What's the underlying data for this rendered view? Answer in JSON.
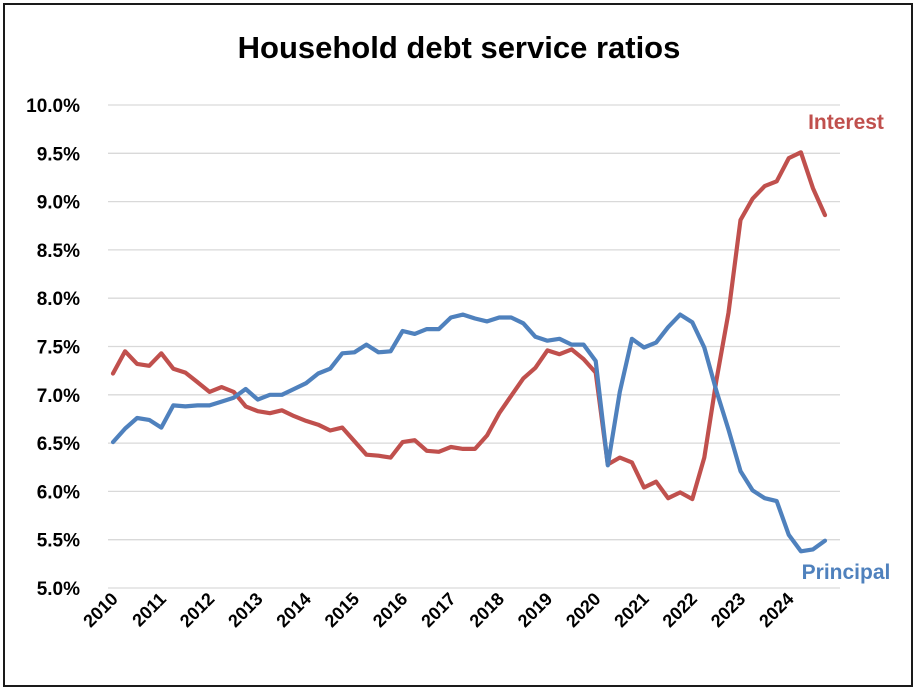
{
  "chart_data": {
    "type": "line",
    "title": "Household debt service ratios",
    "xlabel": "",
    "ylabel": "",
    "ylim": [
      5.0,
      10.0
    ],
    "yticks": [
      "5.0%",
      "5.5%",
      "6.0%",
      "6.5%",
      "7.0%",
      "7.5%",
      "8.0%",
      "8.5%",
      "9.0%",
      "9.5%",
      "10.0%"
    ],
    "xticks": [
      "2010",
      "2011",
      "2012",
      "2013",
      "2014",
      "2015",
      "2016",
      "2017",
      "2018",
      "2019",
      "2020",
      "2021",
      "2022",
      "2023",
      "2024"
    ],
    "grid": true,
    "x": [
      "2010 Q1",
      "2010 Q2",
      "2010 Q3",
      "2010 Q4",
      "2011 Q1",
      "2011 Q2",
      "2011 Q3",
      "2011 Q4",
      "2012 Q1",
      "2012 Q2",
      "2012 Q3",
      "2012 Q4",
      "2013 Q1",
      "2013 Q2",
      "2013 Q3",
      "2013 Q4",
      "2014 Q1",
      "2014 Q2",
      "2014 Q3",
      "2014 Q4",
      "2015 Q1",
      "2015 Q2",
      "2015 Q3",
      "2015 Q4",
      "2016 Q1",
      "2016 Q2",
      "2016 Q3",
      "2016 Q4",
      "2017 Q1",
      "2017 Q2",
      "2017 Q3",
      "2017 Q4",
      "2018 Q1",
      "2018 Q2",
      "2018 Q3",
      "2018 Q4",
      "2019 Q1",
      "2019 Q2",
      "2019 Q3",
      "2019 Q4",
      "2020 Q1",
      "2020 Q2",
      "2020 Q3",
      "2020 Q4",
      "2021 Q1",
      "2021 Q2",
      "2021 Q3",
      "2021 Q4",
      "2022 Q1",
      "2022 Q2",
      "2022 Q3",
      "2022 Q4",
      "2023 Q1",
      "2023 Q2",
      "2023 Q3",
      "2023 Q4",
      "2024 Q1",
      "2024 Q2",
      "2024 Q3",
      "2024 Q4"
    ],
    "series": [
      {
        "name": "Interest",
        "color": "#c0504d",
        "values": [
          7.22,
          7.45,
          7.32,
          7.3,
          7.43,
          7.27,
          7.23,
          7.13,
          7.03,
          7.08,
          7.03,
          6.88,
          6.83,
          6.81,
          6.84,
          6.78,
          6.73,
          6.69,
          6.63,
          6.66,
          6.52,
          6.38,
          6.37,
          6.35,
          6.51,
          6.53,
          6.42,
          6.41,
          6.46,
          6.44,
          6.44,
          6.58,
          6.81,
          6.99,
          7.17,
          7.28,
          7.46,
          7.42,
          7.47,
          7.37,
          7.23,
          6.28,
          6.35,
          6.3,
          6.04,
          6.1,
          5.93,
          5.99,
          5.92,
          6.35,
          7.15,
          7.85,
          8.81,
          9.03,
          9.16,
          9.21,
          9.45,
          9.51,
          9.14,
          8.86
        ]
      },
      {
        "name": "Principal",
        "color": "#4f81bd",
        "values": [
          6.51,
          6.65,
          6.76,
          6.74,
          6.66,
          6.89,
          6.88,
          6.89,
          6.89,
          6.93,
          6.97,
          7.06,
          6.95,
          7.0,
          7.0,
          7.06,
          7.12,
          7.22,
          7.27,
          7.43,
          7.44,
          7.52,
          7.44,
          7.45,
          7.66,
          7.63,
          7.68,
          7.68,
          7.8,
          7.83,
          7.79,
          7.76,
          7.8,
          7.8,
          7.74,
          7.6,
          7.56,
          7.58,
          7.52,
          7.52,
          7.35,
          6.27,
          7.03,
          7.58,
          7.49,
          7.54,
          7.7,
          7.83,
          7.75,
          7.49,
          7.04,
          6.64,
          6.21,
          6.01,
          5.93,
          5.9,
          5.55,
          5.38,
          5.4,
          5.49
        ]
      }
    ]
  }
}
